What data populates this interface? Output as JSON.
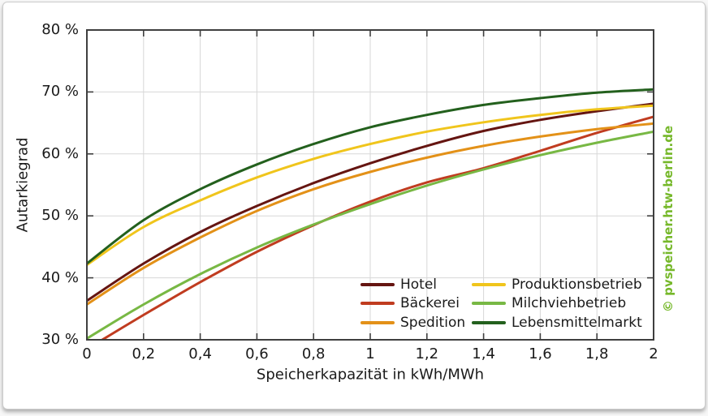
{
  "watermark": "© pvspeicher.htw-berlin.de",
  "colors": {
    "background": "#ffffff",
    "frame": "#3f3f3f",
    "grid": "#d7d7d7",
    "text": "#1a1a1a",
    "watermark_green": "#76b82a"
  },
  "chart_data": {
    "type": "line",
    "title": "",
    "xlabel": "Speicherkapazität in kWh/MWh",
    "ylabel": "Autarkiegrad",
    "xlim": [
      0,
      2
    ],
    "ylim": [
      30,
      80
    ],
    "grid": true,
    "legend_position": "inside bottom-right, two columns",
    "x_ticks": [
      {
        "v": 0,
        "label": "0"
      },
      {
        "v": 0.2,
        "label": "0,2"
      },
      {
        "v": 0.4,
        "label": "0,4"
      },
      {
        "v": 0.6,
        "label": "0,6"
      },
      {
        "v": 0.8,
        "label": "0,8"
      },
      {
        "v": 1,
        "label": "1"
      },
      {
        "v": 1.2,
        "label": "1,2"
      },
      {
        "v": 1.4,
        "label": "1,4"
      },
      {
        "v": 1.6,
        "label": "1,6"
      },
      {
        "v": 1.8,
        "label": "1,8"
      },
      {
        "v": 2,
        "label": "2"
      }
    ],
    "y_ticks": [
      {
        "v": 30,
        "label": "30 %"
      },
      {
        "v": 40,
        "label": "40 %"
      },
      {
        "v": 50,
        "label": "50 %"
      },
      {
        "v": 60,
        "label": "60 %"
      },
      {
        "v": 70,
        "label": "70 %"
      },
      {
        "v": 80,
        "label": "80 %"
      }
    ],
    "x": [
      0,
      0.2,
      0.4,
      0.6,
      0.8,
      1,
      1.2,
      1.4,
      1.6,
      1.8,
      2
    ],
    "series": [
      {
        "name": "Hotel",
        "color": "#651511",
        "values": [
          36.3,
          42.3,
          47.4,
          51.6,
          55.3,
          58.5,
          61.3,
          63.7,
          65.5,
          66.9,
          68.1
        ]
      },
      {
        "name": "Bäckerei",
        "color": "#c03c20",
        "values": [
          28.5,
          34.0,
          39.3,
          44.2,
          48.5,
          52.3,
          55.4,
          57.7,
          60.5,
          63.4,
          66.0
        ]
      },
      {
        "name": "Spedition",
        "color": "#e39118",
        "values": [
          35.7,
          41.6,
          46.5,
          50.8,
          54.3,
          57.1,
          59.4,
          61.3,
          62.8,
          64.0,
          64.9
        ]
      },
      {
        "name": "Produktionsbetrieb",
        "color": "#f0c51c",
        "values": [
          42.1,
          48.2,
          52.5,
          56.2,
          59.2,
          61.6,
          63.6,
          65.1,
          66.3,
          67.2,
          67.8
        ]
      },
      {
        "name": "Milchviehbetrieb",
        "color": "#78b844",
        "values": [
          30.2,
          35.7,
          40.6,
          44.9,
          48.6,
          51.9,
          54.9,
          57.5,
          59.8,
          61.8,
          63.6
        ]
      },
      {
        "name": "Lebensmittelmarkt",
        "color": "#23601d",
        "values": [
          42.3,
          49.3,
          54.3,
          58.3,
          61.6,
          64.3,
          66.3,
          67.9,
          69.0,
          69.9,
          70.4
        ]
      }
    ],
    "legend_columns": [
      [
        "Hotel",
        "Bäckerei",
        "Spedition"
      ],
      [
        "Produktionsbetrieb",
        "Milchviehbetrieb",
        "Lebensmittelmarkt"
      ]
    ]
  }
}
